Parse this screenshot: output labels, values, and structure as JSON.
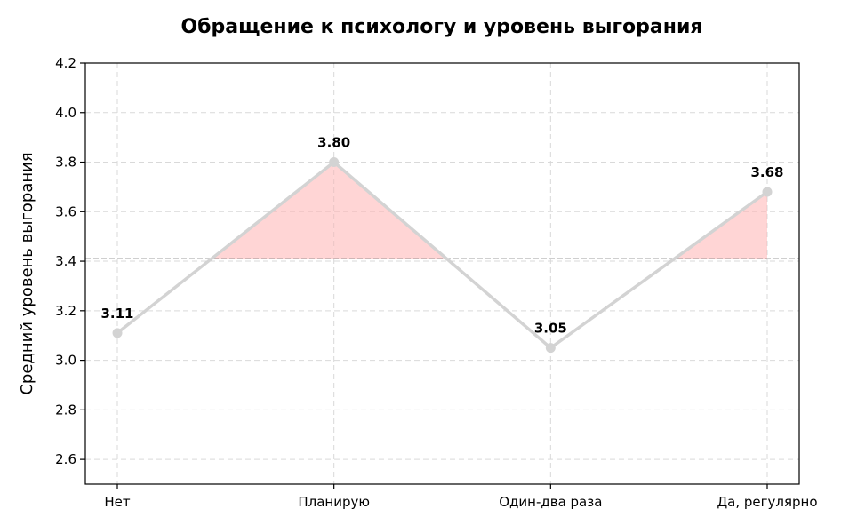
{
  "chart_data": {
    "type": "line",
    "title": "Обращение к психологу и уровень выгорания",
    "xlabel": "",
    "ylabel": "Средний уровень выгорания",
    "categories": [
      "Нет",
      "Планирую",
      "Один-два раза",
      "Да, регулярно"
    ],
    "values": [
      3.11,
      3.8,
      3.05,
      3.68
    ],
    "value_labels": [
      "3.11",
      "3.80",
      "3.05",
      "3.68"
    ],
    "reference_line": 3.41,
    "ylim": [
      2.5,
      4.2
    ],
    "yticks": [
      2.6,
      2.8,
      3.0,
      3.2,
      3.4,
      3.6,
      3.8,
      4.0,
      4.2
    ],
    "ytick_labels": [
      "2.6",
      "2.8",
      "3.0",
      "3.2",
      "3.4",
      "3.6",
      "3.8",
      "4.0",
      "4.2"
    ],
    "grid": true,
    "colors": {
      "line": "#d3d3d3",
      "fill_above": "#ffb3b3",
      "reference": "#808080"
    }
  }
}
